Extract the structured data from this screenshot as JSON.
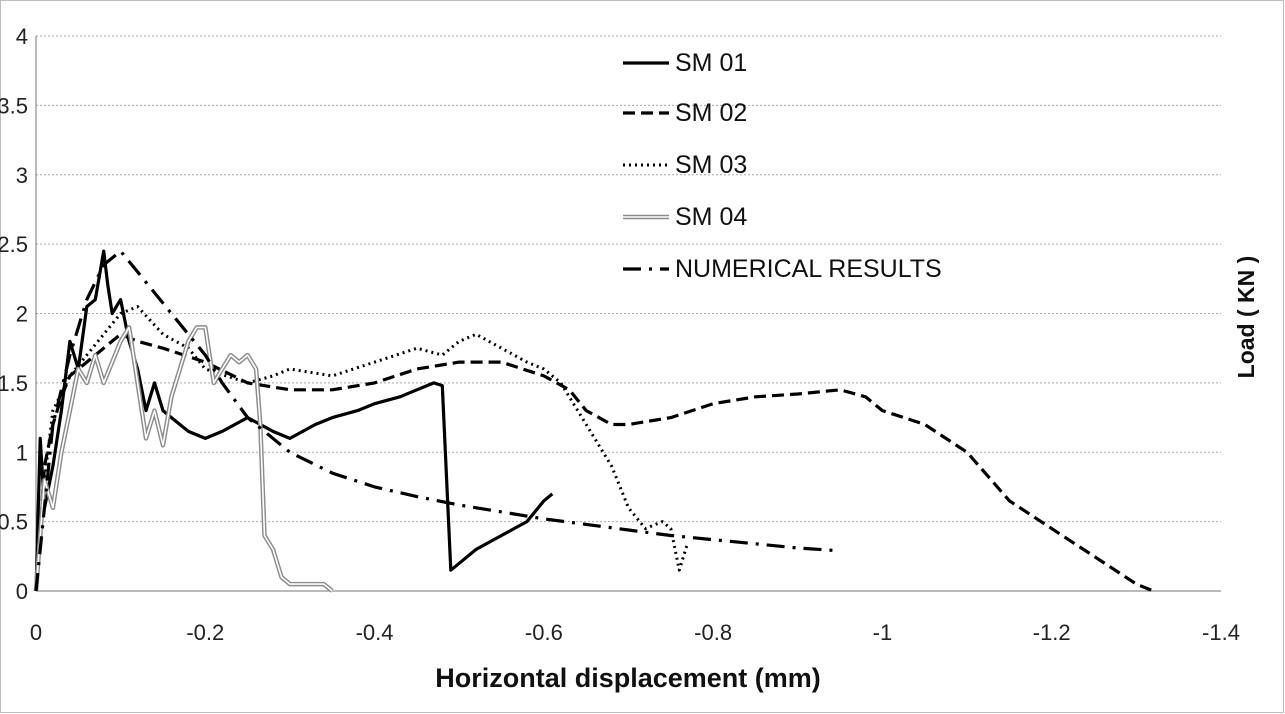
{
  "chart_data": {
    "type": "line",
    "title": "",
    "xlabel": "Horizontal displacement (mm)",
    "ylabel": "Load ( KN )",
    "xlim": [
      0,
      -1.4
    ],
    "ylim": [
      0,
      4
    ],
    "x_ticks": [
      "0",
      "-0.2",
      "-0.4",
      "-0.6",
      "-0.8",
      "-1",
      "-1.2",
      "-1.4"
    ],
    "y_ticks": [
      "0",
      "0.5",
      "1",
      "1.5",
      "2",
      "2.5",
      "3",
      "3.5",
      "4"
    ],
    "grid": "horizontal",
    "legend_position": "top-center",
    "series": [
      {
        "name": "SM 01",
        "style": "solid",
        "color": "#000000",
        "x": [
          0,
          -0.005,
          -0.01,
          -0.02,
          -0.03,
          -0.04,
          -0.05,
          -0.06,
          -0.07,
          -0.08,
          -0.085,
          -0.09,
          -0.1,
          -0.11,
          -0.12,
          -0.13,
          -0.14,
          -0.15,
          -0.16,
          -0.18,
          -0.2,
          -0.22,
          -0.25,
          -0.28,
          -0.3,
          -0.33,
          -0.35,
          -0.38,
          -0.4,
          -0.43,
          -0.45,
          -0.47,
          -0.48,
          -0.49,
          -0.5,
          -0.52,
          -0.55,
          -0.58,
          -0.6,
          -0.61
        ],
        "y": [
          0,
          1.1,
          0.6,
          0.9,
          1.3,
          1.8,
          1.6,
          2.05,
          2.1,
          2.45,
          2.2,
          2.0,
          2.1,
          1.8,
          1.6,
          1.3,
          1.5,
          1.3,
          1.25,
          1.15,
          1.1,
          1.15,
          1.25,
          1.15,
          1.1,
          1.2,
          1.25,
          1.3,
          1.35,
          1.4,
          1.45,
          1.5,
          1.48,
          0.15,
          0.2,
          0.3,
          0.4,
          0.5,
          0.65,
          0.7
        ]
      },
      {
        "name": "SM 02",
        "style": "dashed",
        "color": "#000000",
        "x": [
          0,
          -0.01,
          -0.02,
          -0.03,
          -0.04,
          -0.06,
          -0.08,
          -0.1,
          -0.12,
          -0.15,
          -0.2,
          -0.25,
          -0.3,
          -0.35,
          -0.4,
          -0.45,
          -0.5,
          -0.55,
          -0.6,
          -0.63,
          -0.65,
          -0.68,
          -0.7,
          -0.75,
          -0.8,
          -0.85,
          -0.9,
          -0.95,
          -0.98,
          -1.0,
          -1.05,
          -1.1,
          -1.15,
          -1.2,
          -1.25,
          -1.3,
          -1.32
        ],
        "y": [
          0,
          0.9,
          1.2,
          1.4,
          1.55,
          1.65,
          1.75,
          1.85,
          1.8,
          1.75,
          1.65,
          1.5,
          1.45,
          1.45,
          1.5,
          1.6,
          1.65,
          1.65,
          1.55,
          1.45,
          1.3,
          1.2,
          1.2,
          1.25,
          1.35,
          1.4,
          1.42,
          1.45,
          1.4,
          1.3,
          1.2,
          1.0,
          0.65,
          0.45,
          0.25,
          0.05,
          0.0
        ]
      },
      {
        "name": "SM 03",
        "style": "dotted",
        "color": "#000000",
        "x": [
          0,
          -0.01,
          -0.02,
          -0.04,
          -0.06,
          -0.08,
          -0.1,
          -0.12,
          -0.15,
          -0.18,
          -0.2,
          -0.25,
          -0.28,
          -0.3,
          -0.35,
          -0.4,
          -0.45,
          -0.48,
          -0.5,
          -0.52,
          -0.55,
          -0.58,
          -0.6,
          -0.62,
          -0.65,
          -0.68,
          -0.7,
          -0.72,
          -0.74,
          -0.75,
          -0.76,
          -0.77
        ],
        "y": [
          0,
          0.8,
          1.3,
          1.55,
          1.7,
          1.85,
          2.0,
          2.05,
          1.85,
          1.75,
          1.6,
          1.5,
          1.55,
          1.6,
          1.55,
          1.65,
          1.75,
          1.7,
          1.8,
          1.85,
          1.75,
          1.65,
          1.6,
          1.5,
          1.2,
          0.9,
          0.6,
          0.45,
          0.5,
          0.45,
          0.15,
          0.35
        ]
      },
      {
        "name": "SM 04",
        "style": "double-gray",
        "color": "#8c8c8c",
        "x": [
          0,
          -0.01,
          -0.02,
          -0.03,
          -0.04,
          -0.05,
          -0.06,
          -0.07,
          -0.08,
          -0.09,
          -0.1,
          -0.11,
          -0.12,
          -0.13,
          -0.14,
          -0.15,
          -0.16,
          -0.18,
          -0.19,
          -0.2,
          -0.21,
          -0.22,
          -0.23,
          -0.24,
          -0.25,
          -0.26,
          -0.265,
          -0.27,
          -0.28,
          -0.29,
          -0.3,
          -0.32,
          -0.34,
          -0.35
        ],
        "y": [
          0,
          0.8,
          0.6,
          1.0,
          1.3,
          1.6,
          1.5,
          1.7,
          1.5,
          1.65,
          1.8,
          1.9,
          1.5,
          1.1,
          1.3,
          1.05,
          1.4,
          1.8,
          1.9,
          1.9,
          1.5,
          1.6,
          1.7,
          1.65,
          1.7,
          1.6,
          1.2,
          0.4,
          0.3,
          0.1,
          0.05,
          0.05,
          0.05,
          0.0
        ]
      },
      {
        "name": "NUMERICAL RESULTS",
        "style": "dash-dot",
        "color": "#000000",
        "x": [
          0,
          -0.02,
          -0.04,
          -0.06,
          -0.08,
          -0.1,
          -0.12,
          -0.14,
          -0.16,
          -0.18,
          -0.2,
          -0.22,
          -0.25,
          -0.3,
          -0.35,
          -0.4,
          -0.45,
          -0.5,
          -0.55,
          -0.6,
          -0.65,
          -0.7,
          -0.75,
          -0.8,
          -0.85,
          -0.9,
          -0.95
        ],
        "y": [
          0,
          1.2,
          1.7,
          2.1,
          2.35,
          2.45,
          2.3,
          2.15,
          2.0,
          1.85,
          1.7,
          1.5,
          1.25,
          1.0,
          0.85,
          0.75,
          0.68,
          0.62,
          0.57,
          0.52,
          0.48,
          0.44,
          0.4,
          0.37,
          0.34,
          0.31,
          0.29
        ]
      }
    ]
  }
}
